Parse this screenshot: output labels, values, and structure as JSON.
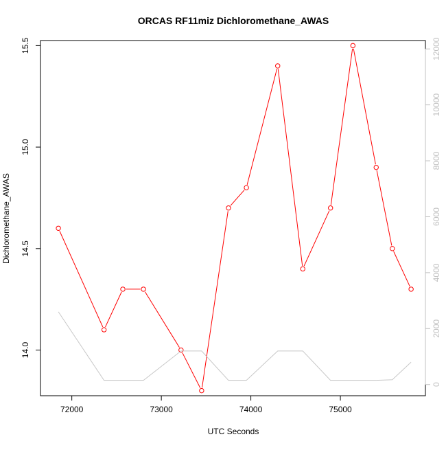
{
  "chart_data": {
    "type": "line",
    "title": "ORCAS RF11miz Dichloromethane_AWAS",
    "xlabel": "UTC Seconds",
    "ylabel": "Dichloromethane_AWAS",
    "y2label": "",
    "xlim": [
      71650,
      75950
    ],
    "ylim": [
      13.775,
      15.525
    ],
    "y2lim": [
      -400,
      12300
    ],
    "x_ticks": [
      72000,
      73000,
      74000,
      75000
    ],
    "y_ticks": [
      14.0,
      14.5,
      15.0,
      15.5
    ],
    "y2_ticks": [
      0,
      2000,
      4000,
      6000,
      8000,
      10000,
      12000
    ],
    "x_tick_labels": [
      "72000",
      "73000",
      "74000",
      "75000"
    ],
    "y_tick_labels": [
      "14.0",
      "14.5",
      "15.0",
      "15.5"
    ],
    "y2_tick_labels": [
      "0",
      "2000",
      "4000",
      "6000",
      "8000",
      "10000",
      "12000"
    ],
    "grid": false,
    "series": [
      {
        "color": "#ff0000",
        "axis": "left",
        "markers": "open-circle",
        "x": [
          71850,
          72360,
          72570,
          72800,
          73220,
          73450,
          73750,
          73950,
          74300,
          74580,
          74890,
          75140,
          75400,
          75580,
          75790
        ],
        "y": [
          14.6,
          14.1,
          14.3,
          14.3,
          14.0,
          13.8,
          14.7,
          14.8,
          15.4,
          14.4,
          14.7,
          15.5,
          14.9,
          14.5,
          14.3
        ]
      },
      {
        "color": "#c8c8c8",
        "axis": "right",
        "markers": "none",
        "x": [
          71850,
          72360,
          72570,
          72800,
          73220,
          73450,
          73750,
          73950,
          74300,
          74580,
          74890,
          75140,
          75400,
          75580,
          75790
        ],
        "y": [
          2600,
          150,
          150,
          150,
          1200,
          1200,
          150,
          150,
          1200,
          1200,
          150,
          150,
          150,
          170,
          800
        ]
      }
    ]
  }
}
